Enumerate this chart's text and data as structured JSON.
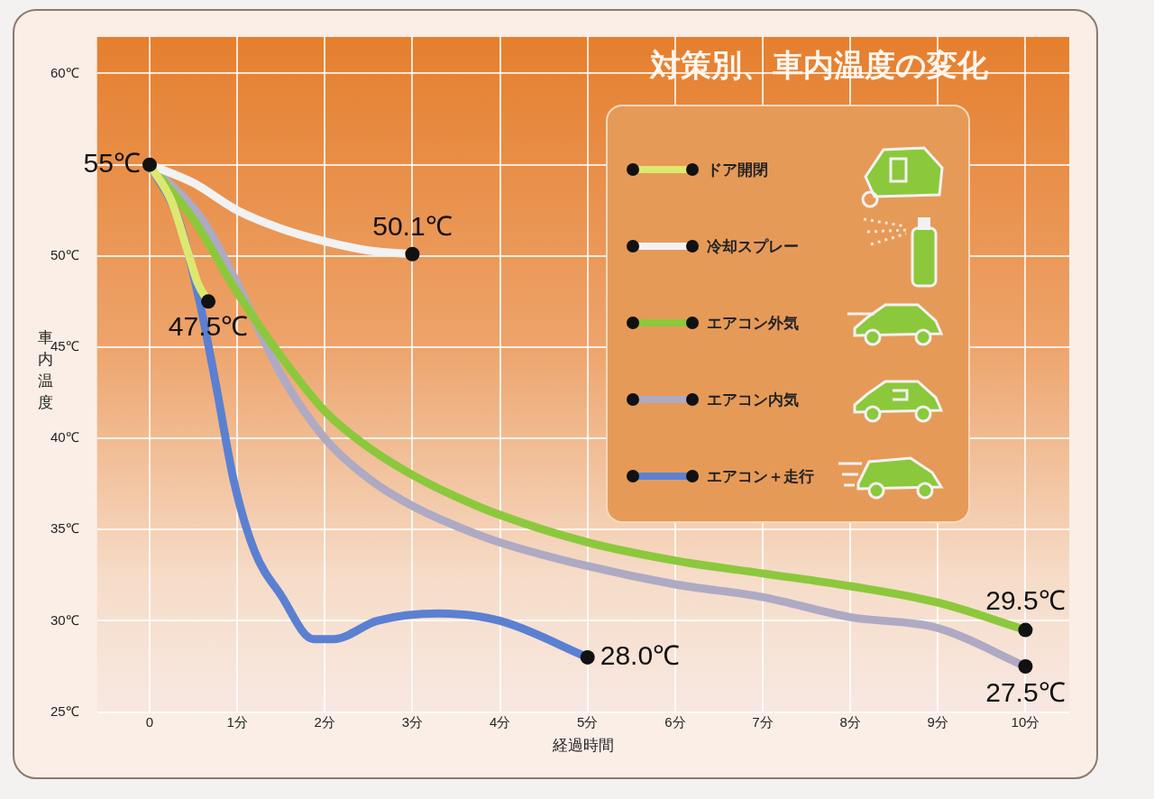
{
  "chart_data": {
    "type": "line",
    "title": "対策別、車内温度の変化",
    "xlabel": "経過時間",
    "ylabel": "車内温度",
    "xlim": [
      -0.6,
      10.5
    ],
    "ylim": [
      25,
      62
    ],
    "xticks": [
      {
        "value": 0,
        "label": "0"
      },
      {
        "value": 1,
        "label": "1分"
      },
      {
        "value": 2,
        "label": "2分"
      },
      {
        "value": 3,
        "label": "3分"
      },
      {
        "value": 4,
        "label": "4分"
      },
      {
        "value": 5,
        "label": "5分"
      },
      {
        "value": 6,
        "label": "6分"
      },
      {
        "value": 7,
        "label": "7分"
      },
      {
        "value": 8,
        "label": "8分"
      },
      {
        "value": 9,
        "label": "9分"
      },
      {
        "value": 10,
        "label": "10分"
      }
    ],
    "yticks": [
      {
        "value": 25,
        "label": "25℃"
      },
      {
        "value": 30,
        "label": "30℃"
      },
      {
        "value": 35,
        "label": "35℃"
      },
      {
        "value": 40,
        "label": "40℃"
      },
      {
        "value": 45,
        "label": "45℃"
      },
      {
        "value": 50,
        "label": "50℃"
      },
      {
        "value": 55,
        "label": null
      },
      {
        "value": 60,
        "label": "60℃"
      }
    ],
    "grid": true,
    "legend": "top right",
    "marker": "none",
    "line_style": "solid",
    "series": [
      {
        "name": "ドア開閉",
        "color": "#dde86e",
        "x": [
          0,
          0.25,
          0.45,
          0.55,
          0.67
        ],
        "values": [
          55,
          53,
          50,
          48.5,
          47.5
        ]
      },
      {
        "name": "冷却スプレー",
        "color": "#f2f2f2",
        "x": [
          0,
          0.5,
          1,
          1.5,
          2,
          2.5,
          3
        ],
        "values": [
          55,
          54,
          52.5,
          51.5,
          50.8,
          50.3,
          50.1
        ]
      },
      {
        "name": "エアコン外気",
        "color": "#8cc83c",
        "x": [
          0,
          0.5,
          1,
          1.5,
          2,
          2.5,
          3,
          3.5,
          4,
          5,
          6,
          7,
          8,
          9,
          10
        ],
        "values": [
          55,
          52,
          48,
          44.5,
          41.5,
          39.5,
          38,
          36.8,
          35.8,
          34.3,
          33.3,
          32.6,
          31.9,
          31,
          29.5
        ]
      },
      {
        "name": "エアコン内気",
        "color": "#aeaac4",
        "x": [
          0,
          0.6,
          1,
          1.5,
          2,
          2.5,
          3,
          3.5,
          4,
          5,
          6,
          7,
          8,
          9,
          10
        ],
        "values": [
          55,
          52,
          48.5,
          43.5,
          40,
          37.8,
          36.3,
          35.2,
          34.3,
          33,
          32,
          31.3,
          30.2,
          29.6,
          27.5
        ]
      },
      {
        "name": "エアコン＋走行",
        "color": "#5b80d2",
        "x": [
          0,
          0.33,
          0.57,
          0.77,
          0.96,
          1.2,
          1.5,
          1.87,
          2.1,
          2.6,
          3.3,
          4,
          5
        ],
        "values": [
          55,
          52,
          47.5,
          42.6,
          37.7,
          33.8,
          31.4,
          29,
          29,
          30,
          30.4,
          30,
          28
        ]
      }
    ],
    "annotations": [
      {
        "text": "55℃",
        "x": 0,
        "y": 55
      },
      {
        "text": "47.5℃",
        "x": 0.67,
        "y": 47.5
      },
      {
        "text": "50.1℃",
        "x": 3,
        "y": 50.1
      },
      {
        "text": "28.0℃",
        "x": 5,
        "y": 28
      },
      {
        "text": "29.5℃",
        "x": 10,
        "y": 29.5
      },
      {
        "text": "27.5℃",
        "x": 10,
        "y": 27.5
      }
    ]
  }
}
